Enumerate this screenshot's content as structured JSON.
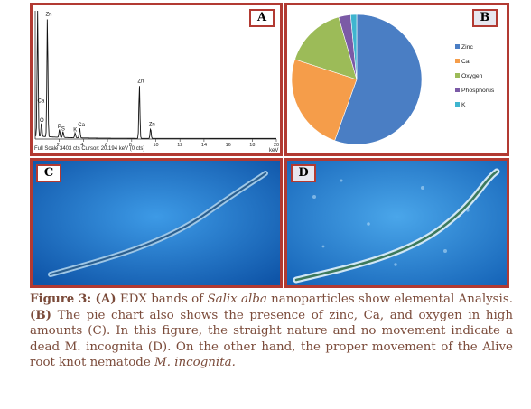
{
  "panels": {
    "a": {
      "label": "A",
      "footer": "Full Scale 3403 cts  Cursor: 20.194 keV (0 cts)",
      "unit": "keV"
    },
    "b": {
      "label": "B"
    },
    "c": {
      "label": "C"
    },
    "d": {
      "label": "D"
    }
  },
  "chart_data": [
    {
      "type": "line",
      "panel": "A",
      "xlabel": "keV",
      "xlim": [
        0,
        20
      ],
      "x_ticks": [
        "2",
        "4",
        "6",
        "8",
        "10",
        "12",
        "14",
        "16",
        "18",
        "20"
      ],
      "series": [
        {
          "values": [
            [
              0.2,
              3380
            ],
            [
              0.52,
              380
            ],
            [
              1.01,
              3200
            ],
            [
              2.01,
              210
            ],
            [
              2.31,
              160
            ],
            [
              3.31,
              130
            ],
            [
              3.69,
              260
            ],
            [
              8.64,
              1430
            ],
            [
              9.57,
              270
            ]
          ]
        }
      ],
      "peaks": [
        {
          "label": "Zn",
          "x": 1.01
        },
        {
          "label": "Ca",
          "x": 0.34
        },
        {
          "label": "O",
          "x": 0.52
        },
        {
          "label": "P",
          "x": 2.01
        },
        {
          "label": "S",
          "x": 2.31
        },
        {
          "label": "K",
          "x": 3.31
        },
        {
          "label": "Ca",
          "x": 3.69
        },
        {
          "label": "Zn",
          "x": 8.64
        },
        {
          "label": "Zn",
          "x": 9.57
        }
      ]
    },
    {
      "type": "pie",
      "panel": "B",
      "slices": [
        {
          "label": "Zinc",
          "value": 55.5,
          "color": "#4a7ec4"
        },
        {
          "label": "Ca",
          "value": 24.5,
          "color": "#f59d4a"
        },
        {
          "label": "Oxygen",
          "value": 15.5,
          "color": "#9cbb58"
        },
        {
          "label": "Phosphorus",
          "value": 3.0,
          "color": "#7b5aa6"
        },
        {
          "label": "K",
          "value": 1.5,
          "color": "#3fb5cf"
        }
      ],
      "legend_position": "right"
    }
  ],
  "caption": {
    "figure_label": "Figure 3:",
    "a_tag": "(A)",
    "part1": " EDX bands of ",
    "species": "Salix alba",
    "part2": " nanoparticles show elemental Analysis. ",
    "b_tag": "(B)",
    "part3": " The pie chart also shows the presence of zinc, Ca, and oxygen in high amounts (C). In this figure, the straight nature and no movement indicate a dead M. incognita (D). On the other hand, the proper movement of the Alive root knot nematode ",
    "species2": "M. incognita."
  }
}
